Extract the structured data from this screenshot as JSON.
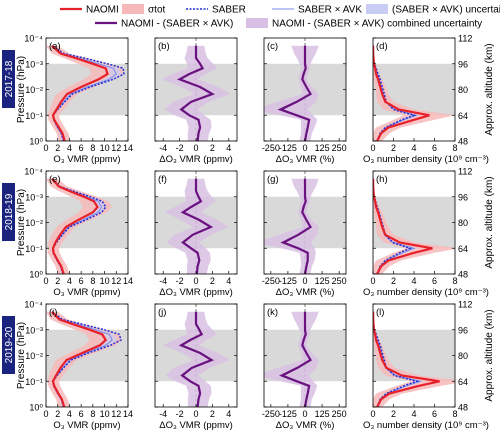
{
  "legend": {
    "row1": [
      {
        "label": "NAOMI",
        "style": "naomi"
      },
      {
        "label": "σtot",
        "style": "sigma"
      },
      {
        "label": "SABER",
        "style": "saber"
      },
      {
        "label": "SABER × AVK",
        "style": "saberavk"
      },
      {
        "label": "(SABER × AVK) uncertainty",
        "style": "avkunc"
      }
    ],
    "row2": [
      {
        "label": "NAOMI - (SABER × AVK)",
        "style": "diff"
      },
      {
        "label": "NAOMI - (SABER × AVK) combined uncertainty",
        "style": "diffunc"
      }
    ]
  },
  "colors": {
    "naomi": "#e8202a",
    "sigma": "#f6b8b8",
    "saber": "#1f2fd6",
    "saberavk": "#7a88e8",
    "avkunc": "#c9cdf4",
    "diff": "#6a1280",
    "diffunc": "#d8bfe3",
    "gray_band": "#d9d9d9",
    "year_box": "#1a237e"
  },
  "axes": {
    "pressure_label": "Pressure (hPa)",
    "altitude_label": "Approx. altitude (km)",
    "p_ticks": [
      "10⁻⁴",
      "10⁻³",
      "10⁻²",
      "10⁻¹",
      "10⁰"
    ],
    "alt_ticks": [
      "112",
      "96",
      "80",
      "64",
      "48"
    ],
    "xlabels": [
      "O₃ VMR (ppmv)",
      "ΔO₃ VMR (ppmv)",
      "ΔO₃ VMR (%)",
      "O₃ number density (10⁹ cm⁻³)"
    ],
    "xticks": [
      [
        "0",
        "2",
        "4",
        "6",
        "8",
        "10",
        "12",
        "14"
      ],
      [
        "-4",
        "-2",
        "0",
        "2",
        "4"
      ],
      [
        "-250",
        "-125",
        "0",
        "125",
        "250"
      ],
      [
        "0",
        "2",
        "4",
        "6",
        "8"
      ]
    ]
  },
  "rows": [
    {
      "year": "2017-18",
      "letters": [
        "(a)",
        "(b)",
        "(c)",
        "(d)"
      ]
    },
    {
      "year": "2018-19",
      "letters": [
        "(e)",
        "(f)",
        "(g)",
        "(h)"
      ]
    },
    {
      "year": "2019-20",
      "letters": [
        "(i)",
        "(j)",
        "(k)",
        "(l)"
      ]
    }
  ],
  "chart_data": {
    "type": "line",
    "y_axis": {
      "quantity": "pressure",
      "unit": "hPa",
      "scale": "log",
      "range": [
        1,
        0.0001
      ],
      "altitude_range_km": [
        48,
        112
      ]
    },
    "gray_band_pressure_hPa": [
      0.001,
      0.1
    ],
    "panel_xlim": [
      [
        0,
        14
      ],
      [
        -5,
        5
      ],
      [
        -300,
        300
      ],
      [
        0,
        8
      ]
    ],
    "profiles": [
      {
        "year": "2017-18",
        "pressure_hPa": [
          1,
          0.5,
          0.3,
          0.15,
          0.1,
          0.06,
          0.03,
          0.015,
          0.008,
          0.004,
          0.0025,
          0.0015,
          0.001,
          0.0006,
          0.0004,
          0.0002
        ],
        "naomi_vmr": [
          3.2,
          2.8,
          2.2,
          1.4,
          1.2,
          1.8,
          2.6,
          3.6,
          6.0,
          9.0,
          10.5,
          10.2,
          8.0,
          5.0,
          2.5,
          1.0
        ],
        "saber_vmr": [
          3.0,
          2.6,
          2.0,
          1.3,
          1.2,
          2.0,
          3.2,
          4.5,
          7.5,
          11.5,
          13.3,
          13.2,
          10.5,
          6.5,
          3.0,
          1.0
        ],
        "avk_vmr": [
          3.0,
          2.6,
          2.0,
          1.3,
          1.2,
          1.9,
          3.0,
          4.2,
          7.0,
          10.8,
          12.0,
          11.5,
          9.0,
          5.5,
          2.8,
          1.0
        ],
        "sigma_vmr": [
          1.0,
          1.0,
          1.0,
          1.0,
          1.0,
          1.2,
          1.5,
          1.8,
          2.2,
          2.6,
          2.8,
          2.8,
          2.5,
          2.0,
          1.5,
          1.0
        ],
        "diff_vmr": [
          0.2,
          0.3,
          0.5,
          0.3,
          -0.8,
          -1.8,
          -0.6,
          2.0,
          0.5,
          -2.0,
          -0.8,
          0.8,
          0.5,
          0.0,
          0.0,
          0.0
        ],
        "diffunc_vmr": [
          1.2,
          1.3,
          1.4,
          1.5,
          1.8,
          2.0,
          2.2,
          2.2,
          2.2,
          2.2,
          2.0,
          1.8,
          1.6,
          1.4,
          1.2,
          1.0
        ],
        "diff_pct": [
          0,
          10,
          20,
          30,
          -60,
          -180,
          -60,
          40,
          10,
          -20,
          -10,
          5,
          0,
          0,
          0,
          0
        ],
        "diffunc_pct": [
          40,
          40,
          50,
          60,
          120,
          200,
          140,
          60,
          40,
          30,
          30,
          30,
          40,
          60,
          80,
          100
        ],
        "naomi_nd": [
          0.4,
          0.8,
          1.5,
          4.0,
          5.5,
          2.5,
          1.2,
          0.9,
          0.7,
          0.5,
          0.3,
          0.2,
          0.1,
          0.05,
          0.02,
          0.01
        ],
        "saber_nd": [
          0.4,
          0.7,
          1.2,
          2.8,
          4.0,
          2.0,
          1.3,
          1.1,
          0.9,
          0.7,
          0.5,
          0.3,
          0.15,
          0.05,
          0.02,
          0.01
        ],
        "avk_nd": [
          0.4,
          0.7,
          1.3,
          3.0,
          4.2,
          2.1,
          1.2,
          1.0,
          0.8,
          0.6,
          0.4,
          0.25,
          0.12,
          0.05,
          0.02,
          0.01
        ],
        "sigma_nd": [
          0.5,
          0.8,
          1.2,
          2.0,
          2.5,
          1.5,
          0.8,
          0.6,
          0.5,
          0.4,
          0.3,
          0.2,
          0.1,
          0.05,
          0.02,
          0.01
        ]
      },
      {
        "year": "2018-19",
        "pressure_hPa": [
          1,
          0.5,
          0.3,
          0.15,
          0.1,
          0.06,
          0.03,
          0.015,
          0.008,
          0.004,
          0.0025,
          0.0015,
          0.001,
          0.0006,
          0.0004,
          0.0002
        ],
        "naomi_vmr": [
          3.0,
          2.6,
          2.0,
          1.3,
          1.2,
          1.6,
          2.4,
          3.4,
          5.5,
          8.0,
          8.8,
          8.2,
          6.5,
          4.0,
          2.2,
          1.0
        ],
        "saber_vmr": [
          2.9,
          2.5,
          1.9,
          1.2,
          1.2,
          1.8,
          2.8,
          4.0,
          6.8,
          9.5,
          10.2,
          9.6,
          7.6,
          4.6,
          2.4,
          1.0
        ],
        "avk_vmr": [
          2.9,
          2.5,
          1.9,
          1.2,
          1.2,
          1.7,
          2.7,
          3.8,
          6.3,
          8.9,
          9.5,
          8.9,
          7.0,
          4.3,
          2.3,
          1.0
        ],
        "sigma_vmr": [
          1.0,
          1.0,
          1.0,
          1.0,
          1.0,
          1.2,
          1.4,
          1.6,
          2.0,
          2.4,
          2.5,
          2.4,
          2.2,
          1.8,
          1.4,
          1.0
        ],
        "diff_vmr": [
          0.1,
          0.2,
          0.4,
          0.2,
          -0.6,
          -1.6,
          -0.4,
          1.8,
          0.4,
          -1.6,
          -0.6,
          0.6,
          0.3,
          0.0,
          0.0,
          0.0
        ],
        "diffunc_vmr": [
          1.2,
          1.3,
          1.4,
          1.5,
          1.8,
          2.0,
          2.2,
          2.2,
          2.2,
          2.2,
          2.0,
          1.8,
          1.6,
          1.4,
          1.2,
          1.0
        ],
        "diff_pct": [
          0,
          10,
          20,
          20,
          -50,
          -160,
          -50,
          40,
          10,
          -20,
          -10,
          5,
          0,
          0,
          0,
          0
        ],
        "diffunc_pct": [
          40,
          40,
          50,
          60,
          120,
          200,
          140,
          60,
          40,
          30,
          30,
          30,
          40,
          60,
          80,
          100
        ],
        "naomi_nd": [
          0.4,
          0.8,
          1.5,
          4.0,
          5.8,
          2.6,
          1.2,
          0.9,
          0.7,
          0.5,
          0.3,
          0.2,
          0.1,
          0.05,
          0.02,
          0.01
        ],
        "saber_nd": [
          0.4,
          0.7,
          1.2,
          2.6,
          3.6,
          1.9,
          1.2,
          1.0,
          0.8,
          0.6,
          0.4,
          0.25,
          0.12,
          0.05,
          0.02,
          0.01
        ],
        "avk_nd": [
          0.4,
          0.7,
          1.3,
          2.9,
          4.0,
          2.0,
          1.1,
          0.9,
          0.7,
          0.5,
          0.35,
          0.22,
          0.1,
          0.05,
          0.02,
          0.01
        ],
        "sigma_nd": [
          0.5,
          0.8,
          1.2,
          2.0,
          2.6,
          1.5,
          0.8,
          0.6,
          0.5,
          0.4,
          0.3,
          0.2,
          0.1,
          0.05,
          0.02,
          0.01
        ]
      },
      {
        "year": "2019-20",
        "pressure_hPa": [
          1,
          0.5,
          0.3,
          0.15,
          0.1,
          0.06,
          0.03,
          0.015,
          0.008,
          0.004,
          0.0025,
          0.0015,
          0.001,
          0.0006,
          0.0004,
          0.0002
        ],
        "naomi_vmr": [
          3.1,
          2.7,
          2.1,
          1.4,
          1.2,
          1.7,
          2.5,
          3.5,
          6.2,
          9.2,
          10.2,
          9.6,
          7.5,
          4.5,
          2.3,
          1.0
        ],
        "saber_vmr": [
          3.0,
          2.6,
          2.0,
          1.3,
          1.2,
          1.9,
          3.0,
          4.3,
          7.2,
          11.0,
          12.8,
          12.5,
          10.0,
          6.0,
          2.8,
          1.0
        ],
        "avk_vmr": [
          3.0,
          2.6,
          2.0,
          1.3,
          1.2,
          1.8,
          2.9,
          4.0,
          6.8,
          10.2,
          11.3,
          10.8,
          8.5,
          5.2,
          2.6,
          1.0
        ],
        "sigma_vmr": [
          1.0,
          1.0,
          1.0,
          1.0,
          1.0,
          1.2,
          1.5,
          1.8,
          2.2,
          2.6,
          2.8,
          2.8,
          2.5,
          2.0,
          1.5,
          1.0
        ],
        "diff_vmr": [
          0.2,
          0.3,
          0.5,
          0.3,
          -0.7,
          -1.7,
          -0.5,
          1.9,
          0.5,
          -1.8,
          -0.7,
          0.7,
          0.4,
          0.0,
          0.0,
          0.0
        ],
        "diffunc_vmr": [
          1.2,
          1.3,
          1.4,
          1.5,
          1.8,
          2.0,
          2.2,
          2.2,
          2.2,
          2.2,
          2.0,
          1.8,
          1.6,
          1.4,
          1.2,
          1.0
        ],
        "diff_pct": [
          0,
          10,
          20,
          30,
          -60,
          -170,
          -55,
          40,
          10,
          -20,
          -10,
          5,
          0,
          0,
          0,
          0
        ],
        "diffunc_pct": [
          40,
          40,
          50,
          60,
          120,
          200,
          140,
          60,
          40,
          30,
          30,
          30,
          40,
          60,
          80,
          100
        ],
        "naomi_nd": [
          0.4,
          0.8,
          1.6,
          4.5,
          6.5,
          2.8,
          1.3,
          0.9,
          0.7,
          0.5,
          0.3,
          0.2,
          0.1,
          0.05,
          0.02,
          0.01
        ],
        "saber_nd": [
          0.4,
          0.7,
          1.3,
          3.0,
          4.3,
          2.1,
          1.3,
          1.1,
          0.9,
          0.7,
          0.5,
          0.3,
          0.15,
          0.05,
          0.02,
          0.01
        ],
        "avk_nd": [
          0.4,
          0.7,
          1.4,
          3.3,
          4.6,
          2.2,
          1.2,
          1.0,
          0.8,
          0.6,
          0.4,
          0.25,
          0.12,
          0.05,
          0.02,
          0.01
        ],
        "sigma_nd": [
          0.5,
          0.8,
          1.3,
          2.2,
          2.8,
          1.6,
          0.8,
          0.6,
          0.5,
          0.4,
          0.3,
          0.2,
          0.1,
          0.05,
          0.02,
          0.01
        ]
      }
    ]
  }
}
